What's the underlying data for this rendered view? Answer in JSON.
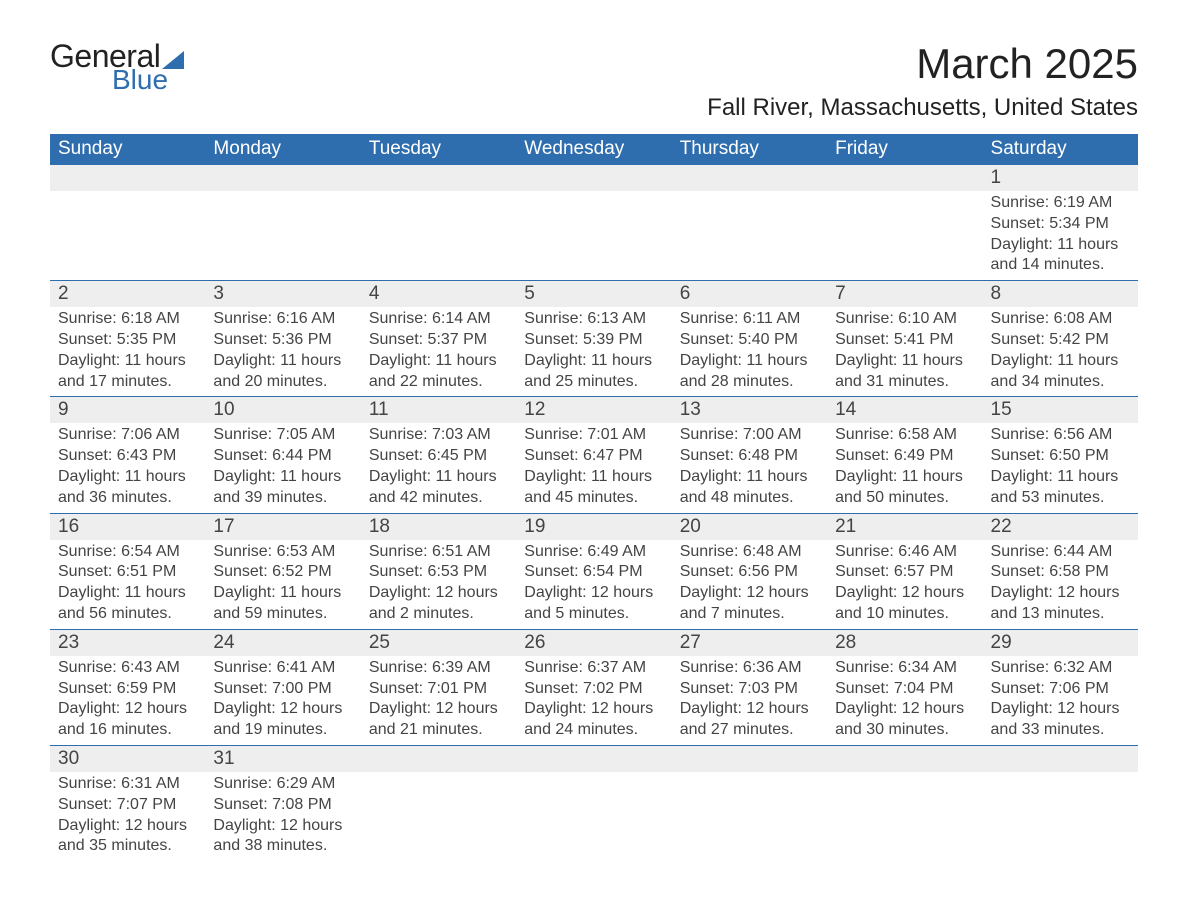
{
  "logo": {
    "text1": "General",
    "text2": "Blue",
    "tri_color": "#2f6eae"
  },
  "title": "March 2025",
  "subtitle": "Fall River, Massachusetts, United States",
  "header_bg": "#2f6eae",
  "header_fg": "#ffffff",
  "row_num_bg": "#eeeeee",
  "days_of_week": [
    "Sunday",
    "Monday",
    "Tuesday",
    "Wednesday",
    "Thursday",
    "Friday",
    "Saturday"
  ],
  "weeks": [
    {
      "nums": [
        "",
        "",
        "",
        "",
        "",
        "",
        "1"
      ],
      "data": [
        null,
        null,
        null,
        null,
        null,
        null,
        {
          "sunrise": "Sunrise: 6:19 AM",
          "sunset": "Sunset: 5:34 PM",
          "day1": "Daylight: 11 hours",
          "day2": "and 14 minutes."
        }
      ]
    },
    {
      "nums": [
        "2",
        "3",
        "4",
        "5",
        "6",
        "7",
        "8"
      ],
      "data": [
        {
          "sunrise": "Sunrise: 6:18 AM",
          "sunset": "Sunset: 5:35 PM",
          "day1": "Daylight: 11 hours",
          "day2": "and 17 minutes."
        },
        {
          "sunrise": "Sunrise: 6:16 AM",
          "sunset": "Sunset: 5:36 PM",
          "day1": "Daylight: 11 hours",
          "day2": "and 20 minutes."
        },
        {
          "sunrise": "Sunrise: 6:14 AM",
          "sunset": "Sunset: 5:37 PM",
          "day1": "Daylight: 11 hours",
          "day2": "and 22 minutes."
        },
        {
          "sunrise": "Sunrise: 6:13 AM",
          "sunset": "Sunset: 5:39 PM",
          "day1": "Daylight: 11 hours",
          "day2": "and 25 minutes."
        },
        {
          "sunrise": "Sunrise: 6:11 AM",
          "sunset": "Sunset: 5:40 PM",
          "day1": "Daylight: 11 hours",
          "day2": "and 28 minutes."
        },
        {
          "sunrise": "Sunrise: 6:10 AM",
          "sunset": "Sunset: 5:41 PM",
          "day1": "Daylight: 11 hours",
          "day2": "and 31 minutes."
        },
        {
          "sunrise": "Sunrise: 6:08 AM",
          "sunset": "Sunset: 5:42 PM",
          "day1": "Daylight: 11 hours",
          "day2": "and 34 minutes."
        }
      ]
    },
    {
      "nums": [
        "9",
        "10",
        "11",
        "12",
        "13",
        "14",
        "15"
      ],
      "data": [
        {
          "sunrise": "Sunrise: 7:06 AM",
          "sunset": "Sunset: 6:43 PM",
          "day1": "Daylight: 11 hours",
          "day2": "and 36 minutes."
        },
        {
          "sunrise": "Sunrise: 7:05 AM",
          "sunset": "Sunset: 6:44 PM",
          "day1": "Daylight: 11 hours",
          "day2": "and 39 minutes."
        },
        {
          "sunrise": "Sunrise: 7:03 AM",
          "sunset": "Sunset: 6:45 PM",
          "day1": "Daylight: 11 hours",
          "day2": "and 42 minutes."
        },
        {
          "sunrise": "Sunrise: 7:01 AM",
          "sunset": "Sunset: 6:47 PM",
          "day1": "Daylight: 11 hours",
          "day2": "and 45 minutes."
        },
        {
          "sunrise": "Sunrise: 7:00 AM",
          "sunset": "Sunset: 6:48 PM",
          "day1": "Daylight: 11 hours",
          "day2": "and 48 minutes."
        },
        {
          "sunrise": "Sunrise: 6:58 AM",
          "sunset": "Sunset: 6:49 PM",
          "day1": "Daylight: 11 hours",
          "day2": "and 50 minutes."
        },
        {
          "sunrise": "Sunrise: 6:56 AM",
          "sunset": "Sunset: 6:50 PM",
          "day1": "Daylight: 11 hours",
          "day2": "and 53 minutes."
        }
      ]
    },
    {
      "nums": [
        "16",
        "17",
        "18",
        "19",
        "20",
        "21",
        "22"
      ],
      "data": [
        {
          "sunrise": "Sunrise: 6:54 AM",
          "sunset": "Sunset: 6:51 PM",
          "day1": "Daylight: 11 hours",
          "day2": "and 56 minutes."
        },
        {
          "sunrise": "Sunrise: 6:53 AM",
          "sunset": "Sunset: 6:52 PM",
          "day1": "Daylight: 11 hours",
          "day2": "and 59 minutes."
        },
        {
          "sunrise": "Sunrise: 6:51 AM",
          "sunset": "Sunset: 6:53 PM",
          "day1": "Daylight: 12 hours",
          "day2": "and 2 minutes."
        },
        {
          "sunrise": "Sunrise: 6:49 AM",
          "sunset": "Sunset: 6:54 PM",
          "day1": "Daylight: 12 hours",
          "day2": "and 5 minutes."
        },
        {
          "sunrise": "Sunrise: 6:48 AM",
          "sunset": "Sunset: 6:56 PM",
          "day1": "Daylight: 12 hours",
          "day2": "and 7 minutes."
        },
        {
          "sunrise": "Sunrise: 6:46 AM",
          "sunset": "Sunset: 6:57 PM",
          "day1": "Daylight: 12 hours",
          "day2": "and 10 minutes."
        },
        {
          "sunrise": "Sunrise: 6:44 AM",
          "sunset": "Sunset: 6:58 PM",
          "day1": "Daylight: 12 hours",
          "day2": "and 13 minutes."
        }
      ]
    },
    {
      "nums": [
        "23",
        "24",
        "25",
        "26",
        "27",
        "28",
        "29"
      ],
      "data": [
        {
          "sunrise": "Sunrise: 6:43 AM",
          "sunset": "Sunset: 6:59 PM",
          "day1": "Daylight: 12 hours",
          "day2": "and 16 minutes."
        },
        {
          "sunrise": "Sunrise: 6:41 AM",
          "sunset": "Sunset: 7:00 PM",
          "day1": "Daylight: 12 hours",
          "day2": "and 19 minutes."
        },
        {
          "sunrise": "Sunrise: 6:39 AM",
          "sunset": "Sunset: 7:01 PM",
          "day1": "Daylight: 12 hours",
          "day2": "and 21 minutes."
        },
        {
          "sunrise": "Sunrise: 6:37 AM",
          "sunset": "Sunset: 7:02 PM",
          "day1": "Daylight: 12 hours",
          "day2": "and 24 minutes."
        },
        {
          "sunrise": "Sunrise: 6:36 AM",
          "sunset": "Sunset: 7:03 PM",
          "day1": "Daylight: 12 hours",
          "day2": "and 27 minutes."
        },
        {
          "sunrise": "Sunrise: 6:34 AM",
          "sunset": "Sunset: 7:04 PM",
          "day1": "Daylight: 12 hours",
          "day2": "and 30 minutes."
        },
        {
          "sunrise": "Sunrise: 6:32 AM",
          "sunset": "Sunset: 7:06 PM",
          "day1": "Daylight: 12 hours",
          "day2": "and 33 minutes."
        }
      ]
    },
    {
      "nums": [
        "30",
        "31",
        "",
        "",
        "",
        "",
        ""
      ],
      "data": [
        {
          "sunrise": "Sunrise: 6:31 AM",
          "sunset": "Sunset: 7:07 PM",
          "day1": "Daylight: 12 hours",
          "day2": "and 35 minutes."
        },
        {
          "sunrise": "Sunrise: 6:29 AM",
          "sunset": "Sunset: 7:08 PM",
          "day1": "Daylight: 12 hours",
          "day2": "and 38 minutes."
        },
        null,
        null,
        null,
        null,
        null
      ]
    }
  ]
}
